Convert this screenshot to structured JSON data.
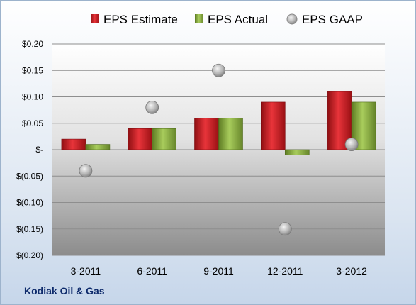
{
  "company": "Kodiak Oil & Gas",
  "chart_data": {
    "type": "bar",
    "categories": [
      "3-2011",
      "6-2011",
      "9-2011",
      "12-2011",
      "3-2012"
    ],
    "series": [
      {
        "name": "EPS Estimate",
        "type": "bar",
        "color": "#c0161c",
        "values": [
          0.02,
          0.04,
          0.06,
          0.09,
          0.11
        ]
      },
      {
        "name": "EPS Actual",
        "type": "bar",
        "color": "#7fa23b",
        "values": [
          0.01,
          0.04,
          0.06,
          -0.01,
          0.09
        ]
      },
      {
        "name": "EPS GAAP",
        "type": "scatter",
        "color": "#a8a8a8",
        "values": [
          -0.04,
          0.08,
          0.15,
          -0.15,
          0.01
        ]
      }
    ],
    "ylim": [
      -0.2,
      0.2
    ],
    "yticks": [
      0.2,
      0.15,
      0.1,
      0.05,
      0,
      -0.05,
      -0.1,
      -0.15,
      -0.2
    ],
    "ytick_labels": [
      "$0.20",
      "$0.15",
      "$0.10",
      "$0.05",
      "$-",
      "$(0.05)",
      "$(0.10)",
      "$(0.15)",
      "$(0.20)"
    ],
    "grid": true,
    "legend_position": "top"
  }
}
